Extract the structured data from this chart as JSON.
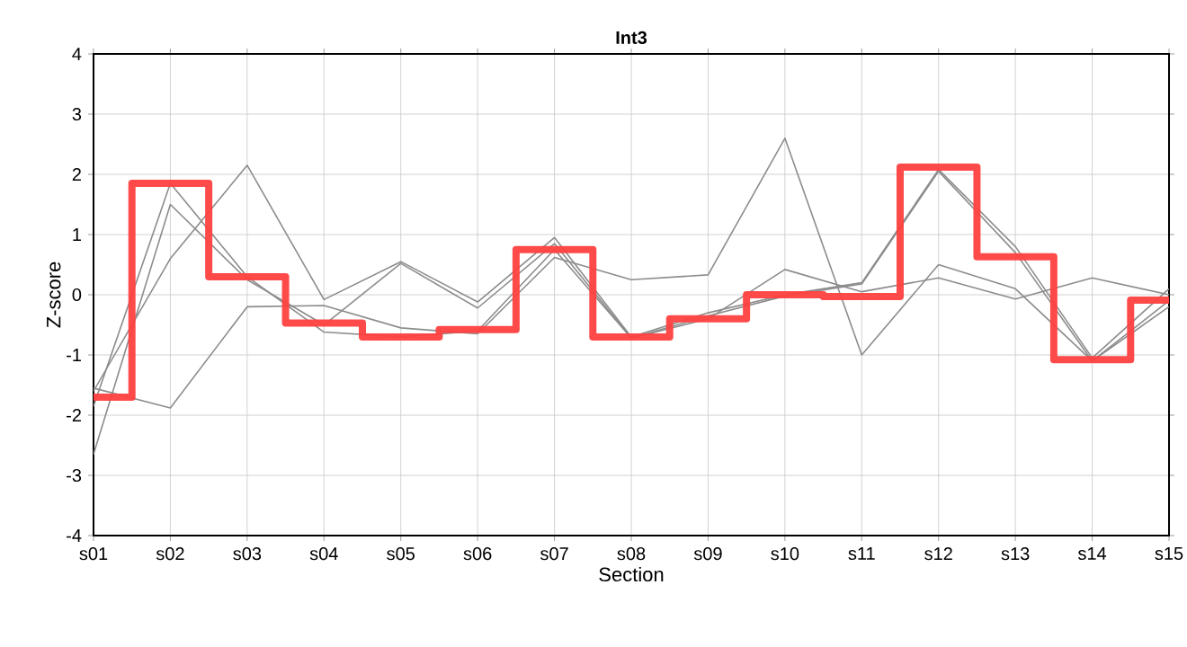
{
  "chart_data": {
    "type": "line",
    "title": "Int3",
    "xlabel": "Section",
    "ylabel": "Z-score",
    "categories": [
      "s01",
      "s02",
      "s03",
      "s04",
      "s05",
      "s06",
      "s07",
      "s08",
      "s09",
      "s10",
      "s11",
      "s12",
      "s13",
      "s14",
      "s15"
    ],
    "ylim": [
      -4,
      4
    ],
    "yticks": [
      -4,
      -3,
      -2,
      -1,
      0,
      1,
      2,
      3,
      4
    ],
    "grid": true,
    "series": [
      {
        "color": "#8c8c8c",
        "values": [
          -1.6,
          0.6,
          2.15,
          -0.08,
          0.55,
          -0.12,
          0.95,
          -0.7,
          -0.3,
          0.0,
          0.2,
          2.08,
          0.8,
          -1.05,
          0.1
        ]
      },
      {
        "color": "#8c8c8c",
        "values": [
          -2.65,
          1.5,
          0.25,
          -0.5,
          0.52,
          -0.22,
          0.85,
          -0.72,
          -0.35,
          -0.02,
          0.18,
          2.05,
          0.7,
          -1.1,
          -0.1
        ]
      },
      {
        "color": "#8c8c8c",
        "values": [
          -1.55,
          -1.88,
          -0.2,
          -0.18,
          -0.55,
          -0.65,
          0.62,
          0.25,
          0.33,
          2.6,
          -1.0,
          0.5,
          0.1,
          -1.1,
          -0.2
        ]
      },
      {
        "color": "#8c8c8c",
        "values": [
          -1.85,
          1.85,
          0.3,
          -0.62,
          -0.7,
          -0.6,
          0.75,
          -0.72,
          -0.4,
          0.42,
          0.05,
          0.28,
          -0.07,
          0.28,
          0.0
        ]
      },
      {
        "type": "step",
        "color": "#ff4040",
        "values": [
          -1.7,
          1.85,
          0.3,
          -0.47,
          -0.7,
          -0.58,
          0.75,
          -0.7,
          -0.4,
          0.0,
          -0.03,
          2.12,
          0.63,
          -1.08,
          -0.09
        ]
      }
    ]
  }
}
